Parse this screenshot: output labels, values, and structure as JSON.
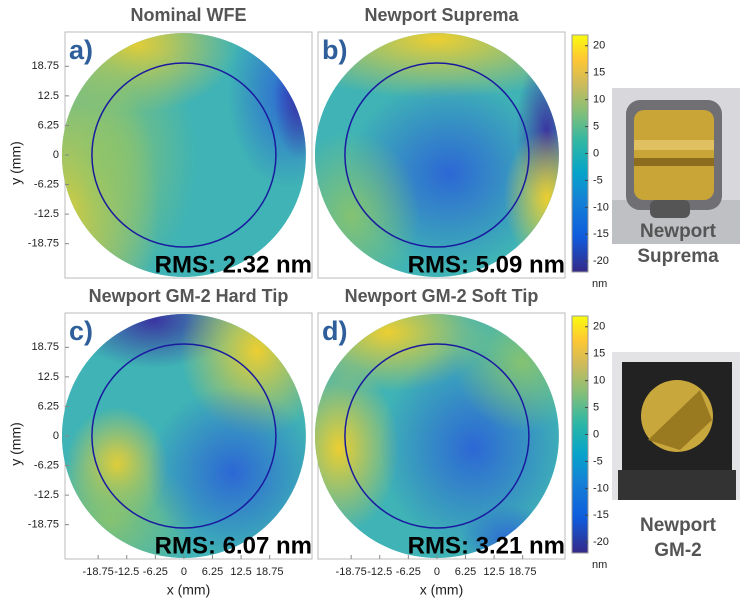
{
  "panels": [
    {
      "label": "a)",
      "title": "Nominal WFE",
      "rms": "RMS: 2.32 nm"
    },
    {
      "label": "b)",
      "title": "Newport Suprema",
      "rms": "RMS: 5.09 nm"
    },
    {
      "label": "c)",
      "title": "Newport GM-2 Hard Tip",
      "rms": "RMS: 6.07 nm"
    },
    {
      "label": "d)",
      "title": "Newport GM-2 Soft Tip",
      "rms": "RMS: 3.21 nm"
    }
  ],
  "axes": {
    "xlabel": "x (mm)",
    "ylabel": "y (mm)",
    "xlim": [
      -26,
      28
    ],
    "ylim": [
      -26,
      26
    ],
    "xticks": [
      -18.75,
      -12.5,
      -6.25,
      0,
      6.25,
      12.5,
      18.75
    ],
    "yticks": [
      -18.75,
      -12.5,
      -6.25,
      0,
      6.25,
      12.5,
      18.75
    ]
  },
  "colorbar": {
    "lim": [
      -22,
      22
    ],
    "ticks": [
      -20,
      -15,
      -10,
      -5,
      0,
      5,
      10,
      15,
      20
    ],
    "unit": "nm"
  },
  "photos": [
    {
      "caption": [
        "Newport",
        "Suprema"
      ]
    },
    {
      "caption": [
        "Newport",
        "GM-2"
      ]
    }
  ]
}
